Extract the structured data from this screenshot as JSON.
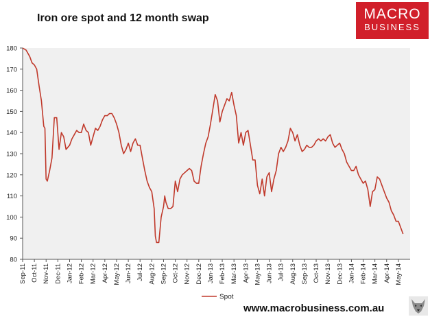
{
  "chart_data": {
    "type": "line",
    "title": "Iron ore spot and 12 month swap",
    "xlabel": "",
    "ylabel": "",
    "ylim": [
      80,
      180
    ],
    "yticks": [
      80,
      90,
      100,
      110,
      120,
      130,
      140,
      150,
      160,
      170,
      180
    ],
    "xlim": [
      0,
      33
    ],
    "xticks": [
      "Sep-11",
      "Oct-11",
      "Nov-11",
      "Dec-11",
      "Jan-12",
      "Feb-12",
      "Mar-12",
      "Apr-12",
      "May-12",
      "Jun-12",
      "Jul-12",
      "Aug-12",
      "Sep-12",
      "Oct-12",
      "Nov-12",
      "Dec-12",
      "Jan-13",
      "Feb-13",
      "Mar-13",
      "Apr-13",
      "May-13",
      "Jun-13",
      "Jul-13",
      "Aug-13",
      "Sep-13",
      "Oct-13",
      "Nov-13",
      "Dec-13",
      "Jan-14",
      "Feb-14",
      "Mar-14",
      "Apr-14",
      "May-14"
    ],
    "plot_background": "#f0f0f0",
    "grid": false,
    "legend": "bottom-center",
    "series": [
      {
        "name": "Spot",
        "color": "#c0392b",
        "points": [
          [
            0.0,
            180
          ],
          [
            0.3,
            179
          ],
          [
            0.6,
            176
          ],
          [
            0.8,
            173
          ],
          [
            1.0,
            172
          ],
          [
            1.2,
            170
          ],
          [
            1.4,
            162
          ],
          [
            1.6,
            155
          ],
          [
            1.8,
            143
          ],
          [
            1.9,
            142
          ],
          [
            2.0,
            118
          ],
          [
            2.1,
            117
          ],
          [
            2.3,
            122
          ],
          [
            2.5,
            128
          ],
          [
            2.7,
            147
          ],
          [
            2.9,
            147
          ],
          [
            3.1,
            132
          ],
          [
            3.3,
            140
          ],
          [
            3.5,
            138
          ],
          [
            3.7,
            132
          ],
          [
            4.0,
            134
          ],
          [
            4.2,
            137
          ],
          [
            4.4,
            139
          ],
          [
            4.6,
            141
          ],
          [
            4.8,
            140
          ],
          [
            5.0,
            140
          ],
          [
            5.2,
            144
          ],
          [
            5.4,
            141
          ],
          [
            5.6,
            140
          ],
          [
            5.8,
            134
          ],
          [
            6.0,
            138
          ],
          [
            6.2,
            142
          ],
          [
            6.4,
            141
          ],
          [
            6.6,
            143
          ],
          [
            6.8,
            146
          ],
          [
            7.0,
            148
          ],
          [
            7.2,
            148
          ],
          [
            7.4,
            149
          ],
          [
            7.6,
            149
          ],
          [
            7.8,
            147
          ],
          [
            8.0,
            144
          ],
          [
            8.2,
            140
          ],
          [
            8.4,
            134
          ],
          [
            8.6,
            130
          ],
          [
            8.8,
            132
          ],
          [
            9.0,
            135
          ],
          [
            9.2,
            131
          ],
          [
            9.4,
            135
          ],
          [
            9.6,
            137
          ],
          [
            9.8,
            134
          ],
          [
            10.0,
            134
          ],
          [
            10.2,
            128
          ],
          [
            10.4,
            122
          ],
          [
            10.6,
            117
          ],
          [
            10.8,
            114
          ],
          [
            11.0,
            112
          ],
          [
            11.2,
            104
          ],
          [
            11.3,
            91
          ],
          [
            11.4,
            88
          ],
          [
            11.6,
            88
          ],
          [
            11.8,
            100
          ],
          [
            12.0,
            105
          ],
          [
            12.1,
            110
          ],
          [
            12.2,
            107
          ],
          [
            12.4,
            104
          ],
          [
            12.6,
            104
          ],
          [
            12.8,
            105
          ],
          [
            13.0,
            117
          ],
          [
            13.2,
            112
          ],
          [
            13.4,
            118
          ],
          [
            13.6,
            120
          ],
          [
            13.8,
            121
          ],
          [
            14.0,
            122
          ],
          [
            14.2,
            123
          ],
          [
            14.4,
            122
          ],
          [
            14.6,
            117
          ],
          [
            14.8,
            116
          ],
          [
            15.0,
            116
          ],
          [
            15.2,
            124
          ],
          [
            15.4,
            130
          ],
          [
            15.6,
            135
          ],
          [
            15.8,
            138
          ],
          [
            16.0,
            144
          ],
          [
            16.2,
            151
          ],
          [
            16.4,
            158
          ],
          [
            16.6,
            155
          ],
          [
            16.8,
            145
          ],
          [
            17.0,
            150
          ],
          [
            17.2,
            153
          ],
          [
            17.4,
            156
          ],
          [
            17.6,
            155
          ],
          [
            17.8,
            159
          ],
          [
            18.0,
            153
          ],
          [
            18.2,
            148
          ],
          [
            18.4,
            135
          ],
          [
            18.6,
            140
          ],
          [
            18.8,
            134
          ],
          [
            19.0,
            140
          ],
          [
            19.2,
            141
          ],
          [
            19.4,
            134
          ],
          [
            19.6,
            127
          ],
          [
            19.8,
            127
          ],
          [
            20.0,
            115
          ],
          [
            20.2,
            111
          ],
          [
            20.4,
            118
          ],
          [
            20.6,
            110
          ],
          [
            20.8,
            119
          ],
          [
            21.0,
            121
          ],
          [
            21.2,
            112
          ],
          [
            21.4,
            118
          ],
          [
            21.6,
            122
          ],
          [
            21.8,
            130
          ],
          [
            22.0,
            133
          ],
          [
            22.2,
            131
          ],
          [
            22.4,
            133
          ],
          [
            22.6,
            136
          ],
          [
            22.8,
            142
          ],
          [
            23.0,
            140
          ],
          [
            23.2,
            136
          ],
          [
            23.4,
            139
          ],
          [
            23.6,
            134
          ],
          [
            23.8,
            131
          ],
          [
            24.0,
            132
          ],
          [
            24.2,
            134
          ],
          [
            24.4,
            133
          ],
          [
            24.6,
            133
          ],
          [
            24.8,
            134
          ],
          [
            25.0,
            136
          ],
          [
            25.2,
            137
          ],
          [
            25.4,
            136
          ],
          [
            25.6,
            137
          ],
          [
            25.8,
            136
          ],
          [
            26.0,
            138
          ],
          [
            26.2,
            139
          ],
          [
            26.4,
            135
          ],
          [
            26.6,
            133
          ],
          [
            26.8,
            134
          ],
          [
            27.0,
            135
          ],
          [
            27.2,
            132
          ],
          [
            27.4,
            130
          ],
          [
            27.6,
            126
          ],
          [
            27.8,
            124
          ],
          [
            28.0,
            122
          ],
          [
            28.2,
            122
          ],
          [
            28.4,
            124
          ],
          [
            28.6,
            120
          ],
          [
            28.8,
            118
          ],
          [
            29.0,
            116
          ],
          [
            29.2,
            117
          ],
          [
            29.4,
            113
          ],
          [
            29.6,
            105
          ],
          [
            29.8,
            112
          ],
          [
            30.0,
            113
          ],
          [
            30.2,
            119
          ],
          [
            30.4,
            118
          ],
          [
            30.6,
            115
          ],
          [
            30.8,
            112
          ],
          [
            31.0,
            109
          ],
          [
            31.2,
            107
          ],
          [
            31.4,
            103
          ],
          [
            31.6,
            101
          ],
          [
            31.8,
            98
          ],
          [
            32.0,
            98
          ],
          [
            32.2,
            95
          ],
          [
            32.4,
            92
          ]
        ]
      }
    ]
  },
  "logo": {
    "line1": "MACRO",
    "line2": "BUSINESS"
  },
  "footer": {
    "url": "www.macrobusiness.com.au"
  },
  "icons": {
    "bottom_right": "wolf-icon"
  }
}
